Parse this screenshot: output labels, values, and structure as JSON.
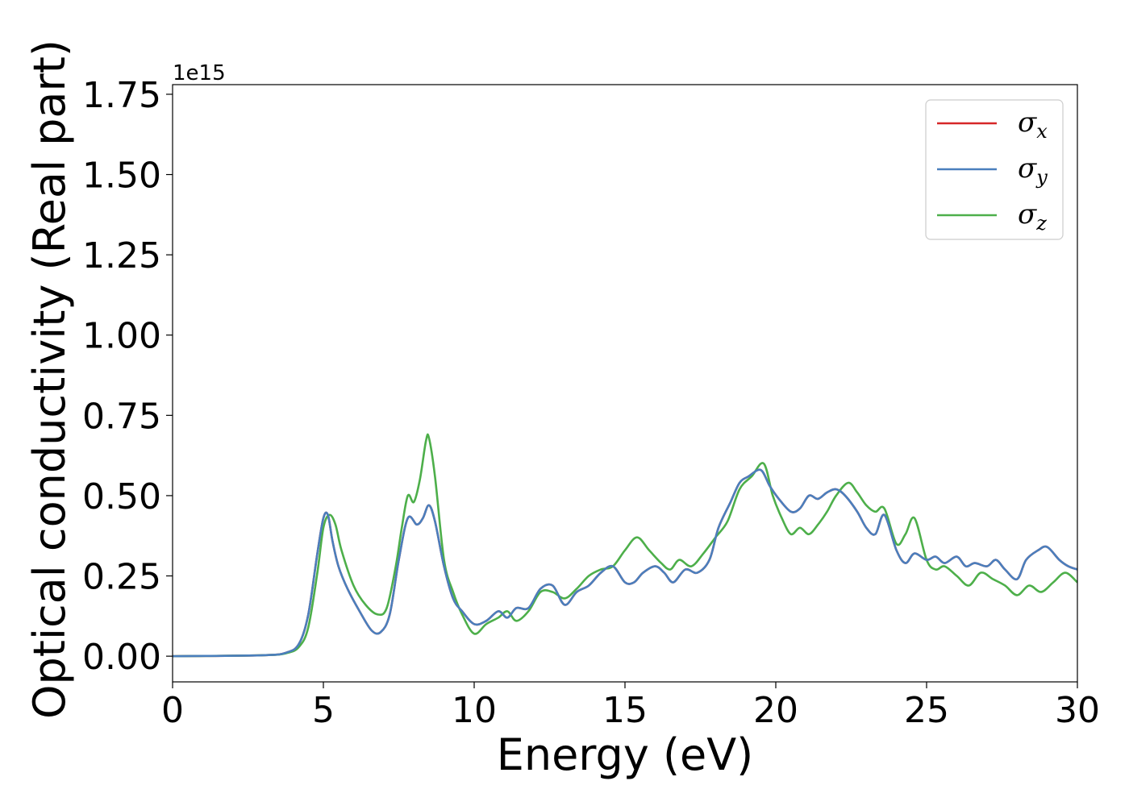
{
  "chart_data": {
    "type": "line",
    "title": "",
    "xlabel": "Energy (eV)",
    "ylabel": "Optical conductivity (Real part)",
    "y_offset_label": "1e15",
    "xlim": [
      0,
      30
    ],
    "ylim": [
      -0.08,
      1.78
    ],
    "x_ticks": [
      0,
      5,
      10,
      15,
      20,
      25,
      30
    ],
    "x_tick_labels": [
      "0",
      "5",
      "10",
      "15",
      "20",
      "25",
      "30"
    ],
    "y_ticks": [
      0.0,
      0.25,
      0.5,
      0.75,
      1.0,
      1.25,
      1.5,
      1.75
    ],
    "y_tick_labels": [
      "0.00",
      "0.25",
      "0.50",
      "0.75",
      "1.00",
      "1.25",
      "1.50",
      "1.75"
    ],
    "grid": false,
    "legend_position": "top-right",
    "series": [
      {
        "name": "σx",
        "symbol": "σ",
        "subscript": "x",
        "color": "#d62728",
        "x": [
          0,
          3,
          3.8,
          4.2,
          4.5,
          4.8,
          5.0,
          5.15,
          5.3,
          5.5,
          5.8,
          6.2,
          6.6,
          6.9,
          7.2,
          7.5,
          7.8,
          8.1,
          8.3,
          8.5,
          8.7,
          9.0,
          9.3,
          9.6,
          10.0,
          10.4,
          10.8,
          11.1,
          11.4,
          11.8,
          12.2,
          12.6,
          13.0,
          13.4,
          13.8,
          14.2,
          14.6,
          15.0,
          15.3,
          15.6,
          16.0,
          16.3,
          16.6,
          17.0,
          17.4,
          17.8,
          18.1,
          18.5,
          18.8,
          19.1,
          19.5,
          19.8,
          20.1,
          20.5,
          20.8,
          21.1,
          21.4,
          21.7,
          22.0,
          22.3,
          22.7,
          23.0,
          23.3,
          23.6,
          24.0,
          24.3,
          24.6,
          25.0,
          25.3,
          25.6,
          26.0,
          26.3,
          26.6,
          27.0,
          27.3,
          27.6,
          28.0,
          28.3,
          28.7,
          29.0,
          29.4,
          29.7,
          30.0
        ],
        "y": [
          0.0,
          0.003,
          0.012,
          0.04,
          0.13,
          0.32,
          0.43,
          0.44,
          0.36,
          0.28,
          0.21,
          0.14,
          0.08,
          0.075,
          0.13,
          0.3,
          0.43,
          0.41,
          0.43,
          0.47,
          0.42,
          0.28,
          0.18,
          0.14,
          0.1,
          0.11,
          0.14,
          0.12,
          0.15,
          0.15,
          0.21,
          0.22,
          0.16,
          0.2,
          0.22,
          0.26,
          0.28,
          0.23,
          0.23,
          0.26,
          0.28,
          0.26,
          0.23,
          0.27,
          0.26,
          0.3,
          0.4,
          0.48,
          0.54,
          0.56,
          0.58,
          0.53,
          0.49,
          0.45,
          0.46,
          0.5,
          0.49,
          0.51,
          0.52,
          0.5,
          0.45,
          0.4,
          0.38,
          0.44,
          0.33,
          0.29,
          0.32,
          0.3,
          0.31,
          0.29,
          0.31,
          0.28,
          0.29,
          0.28,
          0.3,
          0.27,
          0.24,
          0.3,
          0.33,
          0.34,
          0.3,
          0.28,
          0.27
        ]
      },
      {
        "name": "σy",
        "symbol": "σ",
        "subscript": "y",
        "color": "#4a7fbd",
        "x": [
          0,
          3,
          3.8,
          4.2,
          4.5,
          4.8,
          5.0,
          5.15,
          5.3,
          5.5,
          5.8,
          6.2,
          6.6,
          6.9,
          7.2,
          7.5,
          7.8,
          8.1,
          8.3,
          8.5,
          8.7,
          9.0,
          9.3,
          9.6,
          10.0,
          10.4,
          10.8,
          11.1,
          11.4,
          11.8,
          12.2,
          12.6,
          13.0,
          13.4,
          13.8,
          14.2,
          14.6,
          15.0,
          15.3,
          15.6,
          16.0,
          16.3,
          16.6,
          17.0,
          17.4,
          17.8,
          18.1,
          18.5,
          18.8,
          19.1,
          19.5,
          19.8,
          20.1,
          20.5,
          20.8,
          21.1,
          21.4,
          21.7,
          22.0,
          22.3,
          22.7,
          23.0,
          23.3,
          23.6,
          24.0,
          24.3,
          24.6,
          25.0,
          25.3,
          25.6,
          26.0,
          26.3,
          26.6,
          27.0,
          27.3,
          27.6,
          28.0,
          28.3,
          28.7,
          29.0,
          29.4,
          29.7,
          30.0
        ],
        "y": [
          0.0,
          0.003,
          0.012,
          0.04,
          0.13,
          0.32,
          0.43,
          0.44,
          0.36,
          0.28,
          0.21,
          0.14,
          0.08,
          0.075,
          0.13,
          0.3,
          0.43,
          0.41,
          0.43,
          0.47,
          0.42,
          0.28,
          0.18,
          0.14,
          0.1,
          0.11,
          0.14,
          0.12,
          0.15,
          0.15,
          0.21,
          0.22,
          0.16,
          0.2,
          0.22,
          0.26,
          0.28,
          0.23,
          0.23,
          0.26,
          0.28,
          0.26,
          0.23,
          0.27,
          0.26,
          0.3,
          0.4,
          0.48,
          0.54,
          0.56,
          0.58,
          0.53,
          0.49,
          0.45,
          0.46,
          0.5,
          0.49,
          0.51,
          0.52,
          0.5,
          0.45,
          0.4,
          0.38,
          0.44,
          0.33,
          0.29,
          0.32,
          0.3,
          0.31,
          0.29,
          0.31,
          0.28,
          0.29,
          0.28,
          0.3,
          0.27,
          0.24,
          0.3,
          0.33,
          0.34,
          0.3,
          0.28,
          0.27
        ]
      },
      {
        "name": "σz",
        "symbol": "σ",
        "subscript": "z",
        "color": "#4daf4a",
        "x": [
          0,
          3,
          3.8,
          4.2,
          4.5,
          4.8,
          5.0,
          5.2,
          5.4,
          5.6,
          6.0,
          6.4,
          6.8,
          7.1,
          7.4,
          7.6,
          7.8,
          8.0,
          8.2,
          8.4,
          8.5,
          8.7,
          9.0,
          9.3,
          9.6,
          10.0,
          10.4,
          10.8,
          11.1,
          11.4,
          11.8,
          12.2,
          12.6,
          13.0,
          13.4,
          13.8,
          14.2,
          14.6,
          15.0,
          15.4,
          15.8,
          16.2,
          16.5,
          16.8,
          17.2,
          17.6,
          18.0,
          18.4,
          18.8,
          19.2,
          19.6,
          19.9,
          20.2,
          20.5,
          20.8,
          21.1,
          21.4,
          21.7,
          22.0,
          22.4,
          22.7,
          23.0,
          23.3,
          23.6,
          24.0,
          24.3,
          24.6,
          25.0,
          25.3,
          25.6,
          26.0,
          26.4,
          26.8,
          27.2,
          27.6,
          28.0,
          28.4,
          28.8,
          29.2,
          29.6,
          30.0
        ],
        "y": [
          0.0,
          0.003,
          0.01,
          0.03,
          0.09,
          0.26,
          0.4,
          0.44,
          0.41,
          0.33,
          0.22,
          0.16,
          0.13,
          0.15,
          0.28,
          0.4,
          0.5,
          0.48,
          0.55,
          0.67,
          0.68,
          0.56,
          0.3,
          0.2,
          0.13,
          0.07,
          0.1,
          0.12,
          0.14,
          0.11,
          0.14,
          0.2,
          0.2,
          0.18,
          0.21,
          0.25,
          0.27,
          0.28,
          0.33,
          0.37,
          0.33,
          0.29,
          0.27,
          0.3,
          0.28,
          0.32,
          0.37,
          0.42,
          0.52,
          0.56,
          0.6,
          0.5,
          0.43,
          0.38,
          0.4,
          0.38,
          0.41,
          0.45,
          0.5,
          0.54,
          0.51,
          0.47,
          0.45,
          0.46,
          0.35,
          0.38,
          0.43,
          0.3,
          0.27,
          0.28,
          0.25,
          0.22,
          0.26,
          0.24,
          0.22,
          0.19,
          0.22,
          0.2,
          0.23,
          0.26,
          0.23
        ]
      }
    ]
  }
}
